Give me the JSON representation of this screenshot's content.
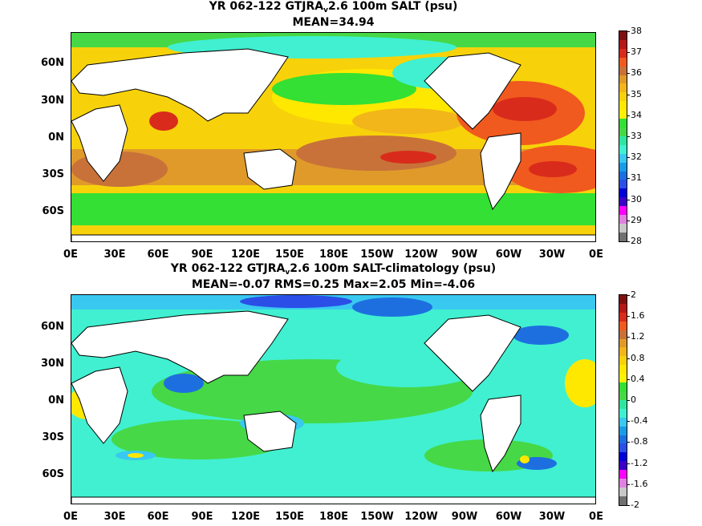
{
  "panels": [
    {
      "title_a": "YR 062-122 GTJRA",
      "title_sub": "v",
      "title_b": "2.6 100m SALT (psu)",
      "stats": "MEAN=34.94",
      "colorbar_labels": [
        "38",
        "37",
        "36",
        "35",
        "34",
        "33",
        "32",
        "31",
        "30",
        "29",
        "28"
      ],
      "colorbar_colors": [
        "#7f0f0f",
        "#b41818",
        "#d92b1b",
        "#f05a1e",
        "#c8723a",
        "#e09a2a",
        "#f2b51a",
        "#f7d20a",
        "#ffe800",
        "#fff200",
        "#33e033",
        "#46d846",
        "#2ee6a0",
        "#40f0d0",
        "#39c8f0",
        "#1a9be6",
        "#1d6fe0",
        "#2a4ee6",
        "#0000d8",
        "#3a00c8",
        "#ff00ff",
        "#e080e0",
        "#c8c8c8",
        "#707070"
      ]
    },
    {
      "title_a": "YR 062-122 GTJRA",
      "title_sub": "v",
      "title_b": "2.6 100m SALT-climatology (psu)",
      "stats": "MEAN=-0.07   RMS=0.25   Max=2.05   Min=-4.06",
      "colorbar_labels": [
        "2",
        "1.6",
        "1.2",
        "0.8",
        "0.4",
        "0",
        "-0.4",
        "-0.8",
        "-1.2",
        "-1.6",
        "-2"
      ],
      "colorbar_colors": [
        "#7f0f0f",
        "#b41818",
        "#d92b1b",
        "#f05a1e",
        "#c8723a",
        "#e09a2a",
        "#f2b51a",
        "#f7d20a",
        "#ffe800",
        "#fff200",
        "#33e033",
        "#46d846",
        "#2ee6a0",
        "#40f0d0",
        "#39c8f0",
        "#1a9be6",
        "#1d6fe0",
        "#2a4ee6",
        "#0000d8",
        "#3a00c8",
        "#ff00ff",
        "#e080e0",
        "#c8c8c8",
        "#707070"
      ]
    }
  ],
  "x_ticks": [
    "0E",
    "30E",
    "60E",
    "90E",
    "120E",
    "150E",
    "180E",
    "150W",
    "120W",
    "90W",
    "60W",
    "30W",
    "0E"
  ],
  "y_ticks": [
    "60N",
    "30N",
    "0N",
    "30S",
    "60S"
  ]
}
